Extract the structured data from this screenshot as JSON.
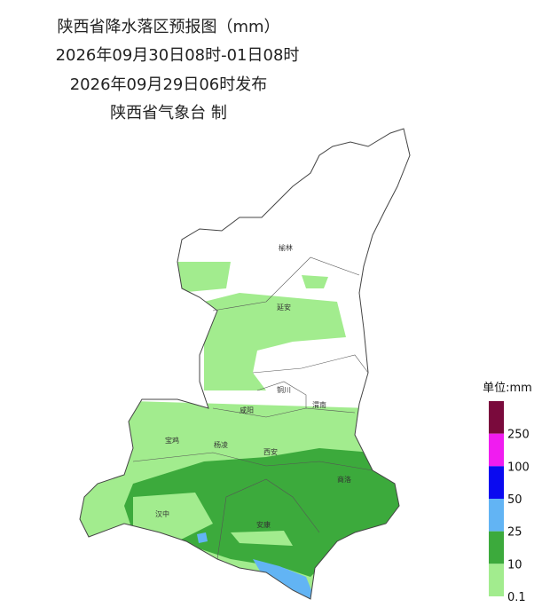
{
  "header": {
    "title": "陕西省降水落区预报图（mm）",
    "period": "2026年09月30日08时-01日08时",
    "issued": "2026年09月29日06时发布",
    "issuer": "陕西省气象台 制"
  },
  "cities": [
    "榆林",
    "延安",
    "铜川",
    "渭南",
    "咸阳",
    "宝鸡",
    "杨凌",
    "西安",
    "商洛",
    "汉中",
    "安康"
  ],
  "legend": {
    "title": "单位:mm",
    "labels": [
      250,
      100,
      50,
      25,
      10,
      0.1
    ],
    "colors": [
      "#7a0a3c",
      "#f01cf0",
      "#0a0af0",
      "#62b4f4",
      "#3caa3c",
      "#a2ec8e"
    ]
  }
}
